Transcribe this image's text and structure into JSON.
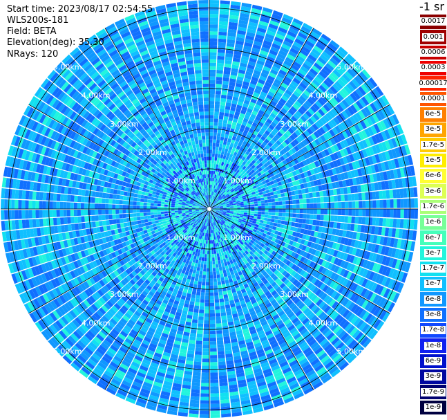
{
  "info": {
    "start_time": "Start time: 2023/08/17 02:54:55",
    "system": "WLS200s-181",
    "field": "Field: BETA",
    "elevation": "Elevation(deg): 35.30",
    "nrays": "NRays: 120"
  },
  "chart_data": {
    "type": "heatmap",
    "projection": "polar",
    "field": "BETA",
    "unit_label": "-1 sr",
    "elevation_deg": 35.3,
    "n_rays": 120,
    "range_rings_km": [
      1.0,
      2.0,
      3.0,
      4.0,
      5.0
    ],
    "ring_labels": [
      "1.00km",
      "2.00km",
      "3.00km",
      "4.00km",
      "5.00km"
    ],
    "max_range_km": 5.2,
    "dominant_value": "about 1e-7 to 1.7e-6",
    "colorbar": [
      {
        "label": "0.0017",
        "color": "#8b0000"
      },
      {
        "label": "0.001",
        "color": "#a00000"
      },
      {
        "label": "0.0006",
        "color": "#c80000"
      },
      {
        "label": "0.0003",
        "color": "#ee0000"
      },
      {
        "label": "0.00017",
        "color": "#ff2200"
      },
      {
        "label": "0.0001",
        "color": "#ff5500"
      },
      {
        "label": "6e-5",
        "color": "#ff8000"
      },
      {
        "label": "3e-5",
        "color": "#ffa500"
      },
      {
        "label": "1.7e-5",
        "color": "#ffcc00"
      },
      {
        "label": "1e-5",
        "color": "#ffee00"
      },
      {
        "label": "6e-6",
        "color": "#ffff33"
      },
      {
        "label": "3e-6",
        "color": "#ddff55"
      },
      {
        "label": "1.7e-6",
        "color": "#aaff77"
      },
      {
        "label": "1e-6",
        "color": "#77ff99"
      },
      {
        "label": "6e-7",
        "color": "#44ffbb"
      },
      {
        "label": "3e-7",
        "color": "#22f5dd"
      },
      {
        "label": "1.7e-7",
        "color": "#11e0f0"
      },
      {
        "label": "1e-7",
        "color": "#10c0ff"
      },
      {
        "label": "6e-8",
        "color": "#1098ff"
      },
      {
        "label": "3e-8",
        "color": "#1070ff"
      },
      {
        "label": "1.7e-8",
        "color": "#1048ff"
      },
      {
        "label": "1e-8",
        "color": "#1020f0"
      },
      {
        "label": "6e-9",
        "color": "#0010cc"
      },
      {
        "label": "3e-9",
        "color": "#0008a0"
      },
      {
        "label": "1.7e-9",
        "color": "#000070"
      },
      {
        "label": "1e-9",
        "color": "#000040"
      }
    ]
  }
}
